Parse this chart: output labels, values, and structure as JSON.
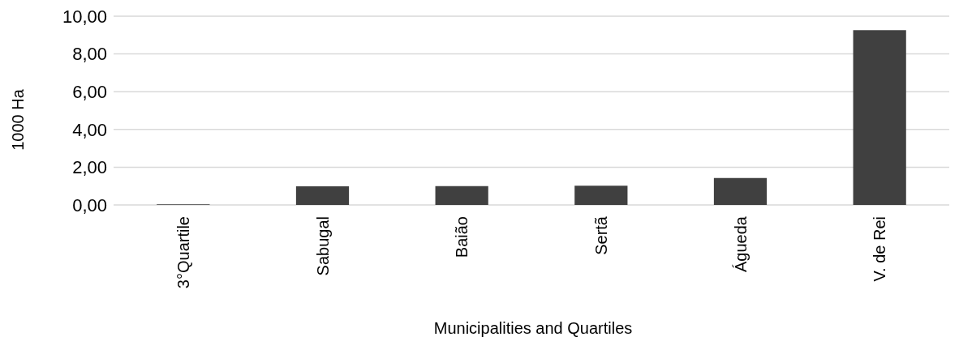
{
  "chart_data": {
    "type": "bar",
    "xlabel": "Municipalities and Quartiles",
    "ylabel": "1000 Ha",
    "categories": [
      "3°Quartile",
      "Sabugal",
      "Baião",
      "Sertã",
      "Águeda",
      "V. de Rei"
    ],
    "values": [
      0.03,
      0.99,
      1.0,
      1.02,
      1.43,
      9.26
    ],
    "color": "#404040",
    "ylim": [
      0,
      10
    ],
    "yticks": [
      {
        "value": 0,
        "label": "0,00"
      },
      {
        "value": 2,
        "label": "2,00"
      },
      {
        "value": 4,
        "label": "4,00"
      },
      {
        "value": 6,
        "label": "6,00"
      },
      {
        "value": 8,
        "label": "8,00"
      },
      {
        "value": 10,
        "label": "10,00"
      }
    ],
    "grid": "y"
  }
}
